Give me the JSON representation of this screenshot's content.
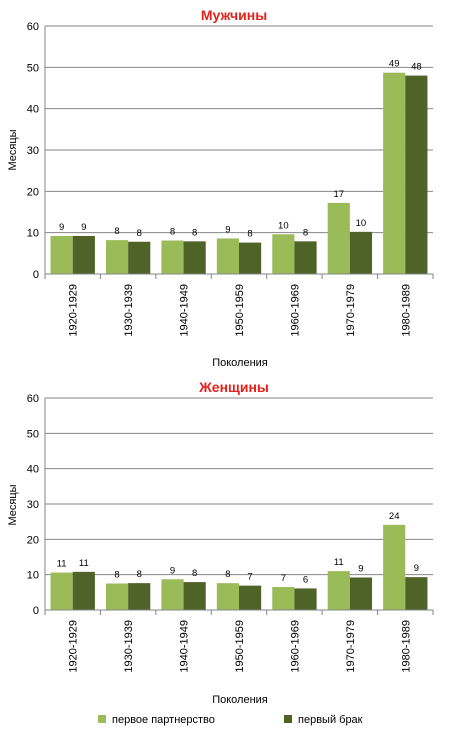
{
  "colors": {
    "first_partnership": "#9bbb59",
    "first_marriage": "#4f6228",
    "title": "#e3221b",
    "grid": "#868686"
  },
  "legend": {
    "placement": "bottom",
    "items": [
      "первое партнерство",
      "первый брак"
    ]
  },
  "chart_data": [
    {
      "type": "bar",
      "title": "Мужчины",
      "xlabel": "Поколения",
      "ylabel": "Месяцы",
      "ylim": [
        0,
        60
      ],
      "yticks": [
        0,
        10,
        20,
        30,
        40,
        50,
        60
      ],
      "grid": true,
      "categories": [
        "1920-1929",
        "1930-1939",
        "1940-1949",
        "1950-1959",
        "1960-1969",
        "1970-1979",
        "1980-1989"
      ],
      "series": [
        {
          "name": "первое партнерство",
          "values": [
            9.2,
            8.2,
            8.1,
            8.6,
            9.6,
            17.2,
            48.7
          ],
          "labels": [
            "9",
            "8",
            "8",
            "9",
            "10",
            "17",
            "49"
          ]
        },
        {
          "name": "первый брак",
          "values": [
            9.2,
            7.8,
            7.9,
            7.6,
            7.9,
            10.2,
            48.0
          ],
          "labels": [
            "9",
            "8",
            "8",
            "8",
            "8",
            "10",
            "48"
          ]
        }
      ]
    },
    {
      "type": "bar",
      "title": "Женщины",
      "xlabel": "Поколения",
      "ylabel": "Месяцы",
      "ylim": [
        0,
        60
      ],
      "yticks": [
        0,
        10,
        20,
        30,
        40,
        50,
        60
      ],
      "grid": true,
      "categories": [
        "1920-1929",
        "1930-1939",
        "1940-1949",
        "1950-1959",
        "1960-1969",
        "1970-1979",
        "1980-1989"
      ],
      "series": [
        {
          "name": "первое партнерство",
          "values": [
            10.6,
            7.5,
            8.7,
            7.6,
            6.5,
            11.0,
            24.1
          ],
          "labels": [
            "11",
            "8",
            "9",
            "8",
            "7",
            "11",
            "24"
          ]
        },
        {
          "name": "первый брак",
          "values": [
            10.8,
            7.6,
            7.9,
            6.9,
            6.1,
            9.2,
            9.3
          ],
          "labels": [
            "11",
            "8",
            "8",
            "7",
            "6",
            "9",
            "9"
          ]
        }
      ]
    }
  ]
}
